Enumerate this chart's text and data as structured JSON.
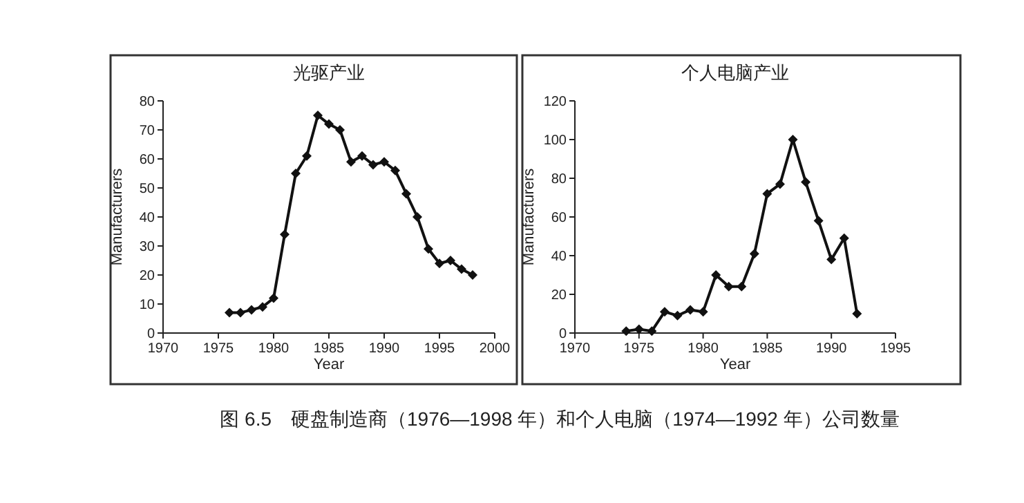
{
  "chart_data": [
    {
      "type": "line",
      "title": "光驱产业",
      "xlabel": "Year",
      "ylabel": "Manufacturers",
      "x": [
        1976,
        1977,
        1978,
        1979,
        1980,
        1981,
        1982,
        1983,
        1984,
        1985,
        1986,
        1987,
        1988,
        1989,
        1990,
        1991,
        1992,
        1993,
        1994,
        1995,
        1996,
        1997,
        1998
      ],
      "series": [
        {
          "color": "#111111",
          "values": [
            7,
            7,
            8,
            9,
            12,
            34,
            55,
            61,
            75,
            72,
            70,
            59,
            61,
            58,
            59,
            56,
            48,
            40,
            29,
            24,
            25,
            22,
            20
          ]
        }
      ],
      "xlim": [
        1970,
        2000
      ],
      "xticks": [
        1970,
        1975,
        1980,
        1985,
        1990,
        1995,
        2000
      ],
      "ylim": [
        0,
        80
      ],
      "yticks": [
        0,
        10,
        20,
        30,
        40,
        50,
        60,
        70,
        80
      ],
      "marker": "diamond",
      "grid": false,
      "annotations": [
        "图 6.5　硬盘制造商（1976—1998 年）和个人电脑（1974—1992 年）公司数量"
      ]
    },
    {
      "type": "line",
      "title": "个人电脑产业",
      "xlabel": "Year",
      "ylabel": "Manufacturers",
      "x": [
        1974,
        1975,
        1976,
        1977,
        1978,
        1979,
        1980,
        1981,
        1982,
        1983,
        1984,
        1985,
        1986,
        1987,
        1988,
        1989,
        1990,
        1991,
        1992
      ],
      "series": [
        {
          "color": "#111111",
          "values": [
            1,
            2,
            1,
            11,
            9,
            12,
            11,
            30,
            24,
            24,
            41,
            72,
            77,
            100,
            78,
            58,
            38,
            49,
            10
          ]
        }
      ],
      "xlim": [
        1970,
        1995
      ],
      "xticks": [
        1970,
        1975,
        1980,
        1985,
        1990,
        1995
      ],
      "ylim": [
        0,
        120
      ],
      "yticks": [
        0,
        20,
        40,
        60,
        80,
        100,
        120
      ],
      "marker": "diamond",
      "grid": false
    }
  ]
}
